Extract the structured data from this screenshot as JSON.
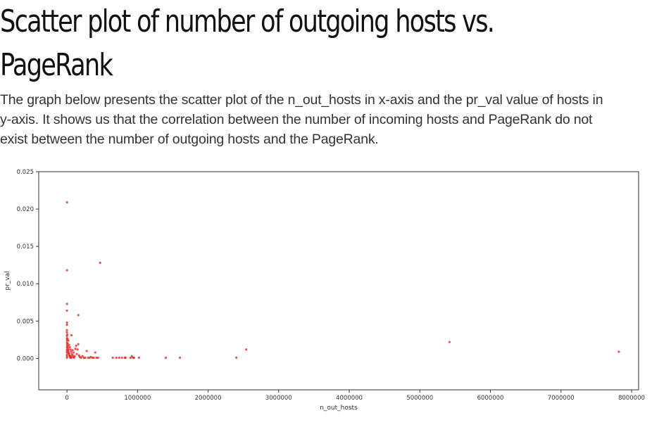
{
  "section": {
    "title_lines": [
      "Scatter plot of number of outgoing hosts vs.",
      "PageRank"
    ],
    "paragraph_lines": [
      "The graph below presents the scatter plot of the n_out_hosts  in x-axis and the pr_val value of hosts in",
      "y-axis. It shows us that the correlation between the number of incoming hosts and PageRank do not",
      "exist between the number of outgoing hosts and the PageRank."
    ]
  },
  "chart_data": {
    "type": "scatter",
    "title": "",
    "xlabel": "n_out_hosts",
    "ylabel": "pr_val",
    "xlim": [
      -400000,
      8100000
    ],
    "ylim": [
      -0.0042,
      0.025
    ],
    "x_ticks": [
      0,
      1000000,
      2000000,
      3000000,
      4000000,
      5000000,
      6000000,
      7000000,
      8000000
    ],
    "x_tick_labels": [
      "0",
      "1000000",
      "2000000",
      "3000000",
      "4000000",
      "5000000",
      "6000000",
      "7000000",
      "8000000"
    ],
    "y_ticks": [
      0.0,
      0.005,
      0.01,
      0.015,
      0.02,
      0.025
    ],
    "y_tick_labels": [
      "0.000",
      "0.005",
      "0.010",
      "0.015",
      "0.020",
      "0.025"
    ],
    "grid": false,
    "legend": "none",
    "marker_color": "#e8191b",
    "series": [
      {
        "points": [
          [
            0,
            0.0209
          ],
          [
            0,
            0.0118
          ],
          [
            0,
            0.0073
          ],
          [
            0,
            0.0064
          ],
          [
            0,
            0.0048
          ],
          [
            0,
            0.0045
          ],
          [
            0,
            0.0038
          ],
          [
            0,
            0.0035
          ],
          [
            0,
            0.003
          ],
          [
            0,
            0.0027
          ],
          [
            0,
            0.0024
          ],
          [
            0,
            0.0021
          ],
          [
            0,
            0.0018
          ],
          [
            0,
            0.0015
          ],
          [
            0,
            0.0012
          ],
          [
            0,
            0.001
          ],
          [
            0,
            0.0008
          ],
          [
            0,
            0.0005
          ],
          [
            0,
            0.0003
          ],
          [
            0,
            0.0001
          ],
          [
            5000,
            0.0032
          ],
          [
            8000,
            0.0026
          ],
          [
            10000,
            0.002
          ],
          [
            12000,
            0.0016
          ],
          [
            15000,
            0.0013
          ],
          [
            18000,
            0.0011
          ],
          [
            20000,
            0.0009
          ],
          [
            25000,
            0.0007
          ],
          [
            30000,
            0.0006
          ],
          [
            35000,
            0.0004
          ],
          [
            40000,
            0.0003
          ],
          [
            45000,
            0.0002
          ],
          [
            50000,
            0.0001
          ],
          [
            55000,
            0.0003
          ],
          [
            60000,
            0.0001
          ],
          [
            20000,
            0.0024
          ],
          [
            30000,
            0.0018
          ],
          [
            40000,
            0.0015
          ],
          [
            50000,
            0.0012
          ],
          [
            60000,
            0.0009
          ],
          [
            70000,
            0.0006
          ],
          [
            80000,
            0.0004
          ],
          [
            90000,
            0.0002
          ],
          [
            100000,
            0.0001
          ],
          [
            110000,
            0.0003
          ],
          [
            65000,
            0.0031
          ],
          [
            80000,
            0.0011
          ],
          [
            95000,
            0.0008
          ],
          [
            120000,
            0.0013
          ],
          [
            130000,
            0.0017
          ],
          [
            140000,
            0.0006
          ],
          [
            150000,
            0.0012
          ],
          [
            160000,
            0.0019
          ],
          [
            170000,
            0.0004
          ],
          [
            180000,
            0.0002
          ],
          [
            200000,
            0.0001
          ],
          [
            220000,
            0.0003
          ],
          [
            240000,
            0.0001
          ],
          [
            260000,
            0.0001
          ],
          [
            280000,
            0.001
          ],
          [
            300000,
            0.0001
          ],
          [
            320000,
            0.0001
          ],
          [
            340000,
            0.0002
          ],
          [
            360000,
            0.0001
          ],
          [
            380000,
            0.0001
          ],
          [
            400000,
            0.0008
          ],
          [
            420000,
            0.0001
          ],
          [
            440000,
            0.0001
          ],
          [
            160000,
            0.0058
          ],
          [
            470000,
            0.0128
          ],
          [
            650000,
            0.0001
          ],
          [
            700000,
            0.0001
          ],
          [
            740000,
            0.0001
          ],
          [
            780000,
            0.0001
          ],
          [
            820000,
            0.0001
          ],
          [
            830000,
            0.0001
          ],
          [
            900000,
            0.0001
          ],
          [
            920000,
            0.0003
          ],
          [
            940000,
            0.0001
          ],
          [
            950000,
            0.0001
          ],
          [
            1020000,
            0.0001
          ],
          [
            1400000,
            0.0001
          ],
          [
            1600000,
            0.0001
          ],
          [
            2400000,
            0.0001
          ],
          [
            2540000,
            0.0012
          ],
          [
            5420000,
            0.0022
          ],
          [
            7820000,
            0.0009
          ]
        ]
      }
    ]
  }
}
